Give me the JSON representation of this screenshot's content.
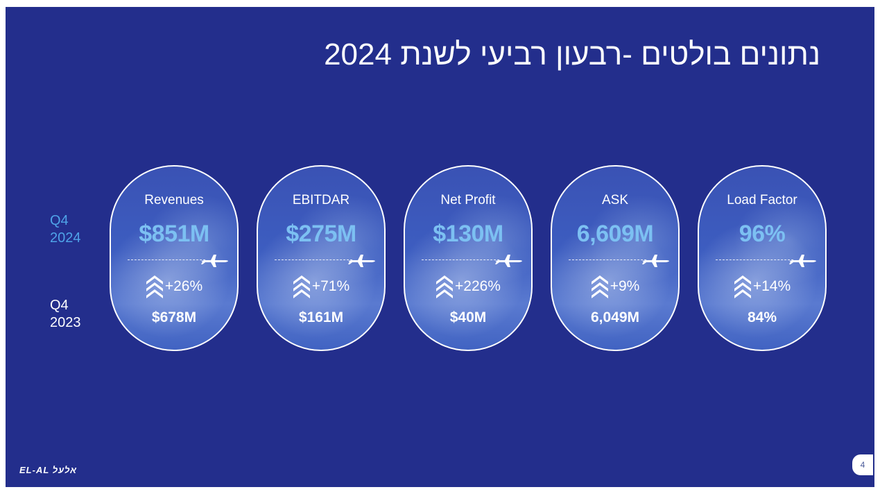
{
  "title": "נתונים בולטים -רבעון רביעי לשנת 2024",
  "row_labels": {
    "current": [
      "Q4",
      "2024"
    ],
    "previous": [
      "Q4",
      "2023"
    ]
  },
  "colors": {
    "background": "#232e8c",
    "current_value": "#7cc0f2",
    "current_label": "#4fa3e8"
  },
  "cards": [
    {
      "name": "Revenues",
      "current": "$851M",
      "change": "+26%",
      "previous": "$678M",
      "icon": "chevron-up-icon"
    },
    {
      "name": "EBITDAR",
      "current": "$275M",
      "change": "+71%",
      "previous": "$161M",
      "icon": "chevron-up-icon"
    },
    {
      "name": "Net Profit",
      "current": "$130M",
      "change": "+226%",
      "previous": "$40M",
      "icon": "chevron-up-icon"
    },
    {
      "name": "ASK",
      "current": "6,609M",
      "change": "+9%",
      "previous": "6,049M",
      "icon": "chevron-up-icon"
    },
    {
      "name": "Load Factor",
      "current": "96%",
      "change": "+14%",
      "previous": "84%",
      "icon": "chevron-up-icon"
    }
  ],
  "logo": "EL-AL אלעל",
  "page_number": "4"
}
